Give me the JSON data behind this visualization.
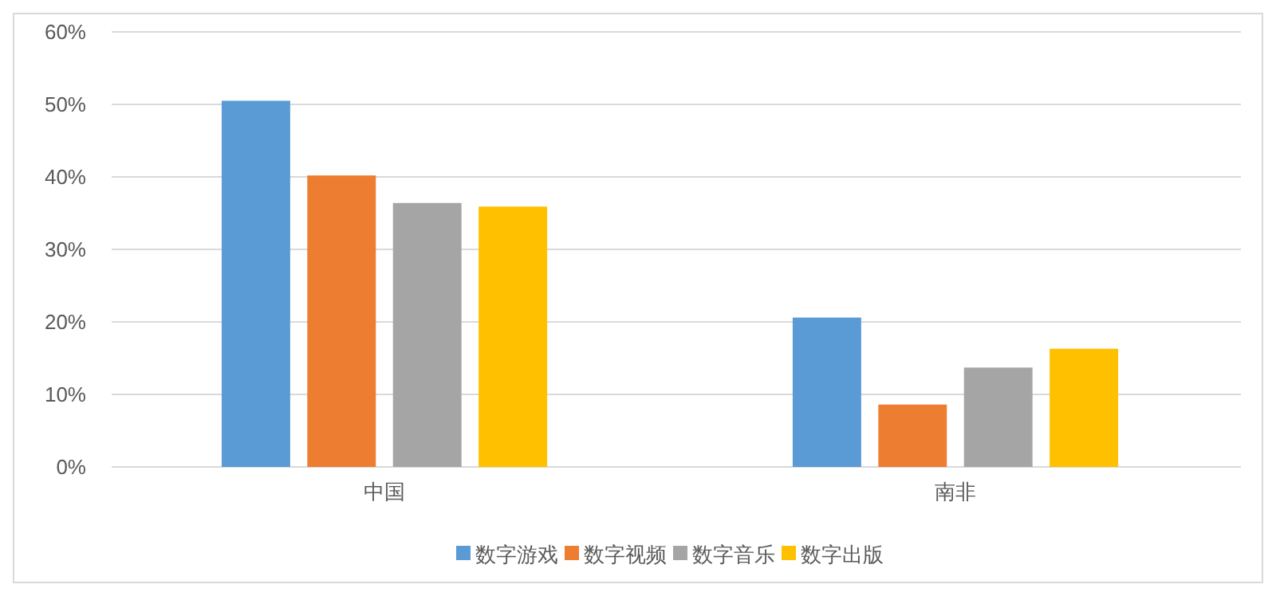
{
  "chart_data": {
    "type": "bar",
    "categories": [
      "中国",
      "南非"
    ],
    "series": [
      {
        "name": "数字游戏",
        "color": "#5b9bd5",
        "values": [
          50.5,
          20.6
        ]
      },
      {
        "name": "数字视频",
        "color": "#ed7d31",
        "values": [
          40.2,
          8.6
        ]
      },
      {
        "name": "数字音乐",
        "color": "#a5a5a5",
        "values": [
          36.4,
          13.7
        ]
      },
      {
        "name": "数字出版",
        "color": "#ffc000",
        "values": [
          35.9,
          16.3
        ]
      }
    ],
    "ylim": [
      0,
      60
    ],
    "yticks": [
      {
        "value": 0,
        "label": "0%"
      },
      {
        "value": 10,
        "label": "10%"
      },
      {
        "value": 20,
        "label": "20%"
      },
      {
        "value": 30,
        "label": "30%"
      },
      {
        "value": 40,
        "label": "40%"
      },
      {
        "value": 50,
        "label": "50%"
      },
      {
        "value": 60,
        "label": "60%"
      }
    ],
    "grid": "y",
    "legend": "bottom"
  }
}
